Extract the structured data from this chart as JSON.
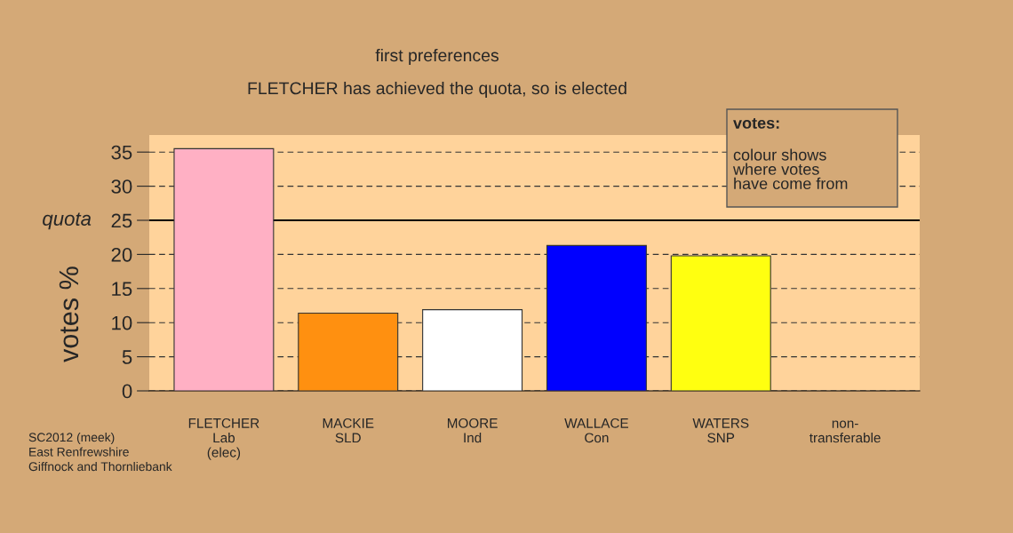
{
  "chart_data": {
    "type": "bar",
    "title": "first preferences",
    "subtitle": "FLETCHER has achieved the quota, so is elected",
    "ylabel": "votes %",
    "categories": [
      "FLETCHER\nLab\n(elec)",
      "MACKIE\nSLD",
      "MOORE\nInd",
      "WALLACE\nCon",
      "WATERS\nSNP",
      "non-\ntransferable"
    ],
    "values": [
      35.5,
      11.4,
      11.9,
      21.3,
      19.8,
      null
    ],
    "colors": [
      "#ffb0c4",
      "#ff9010",
      "#ffffff",
      "#0000ff",
      "#ffff10",
      "#ffd39b"
    ],
    "ylim": [
      0,
      37.5
    ],
    "yticks": [
      0,
      5,
      10,
      15,
      20,
      25,
      30,
      35
    ],
    "grid": "y",
    "ref_lines": [
      {
        "axis": "y",
        "value": 25,
        "label": "quota",
        "color": "#000000",
        "line_style": "solid"
      }
    ],
    "annotations": [
      "SC2012 (meek)\nEast Renfrewshire\nGiffnock and Thornliebank",
      "votes:",
      "colour shows\nwhere votes\nhave come from"
    ]
  }
}
